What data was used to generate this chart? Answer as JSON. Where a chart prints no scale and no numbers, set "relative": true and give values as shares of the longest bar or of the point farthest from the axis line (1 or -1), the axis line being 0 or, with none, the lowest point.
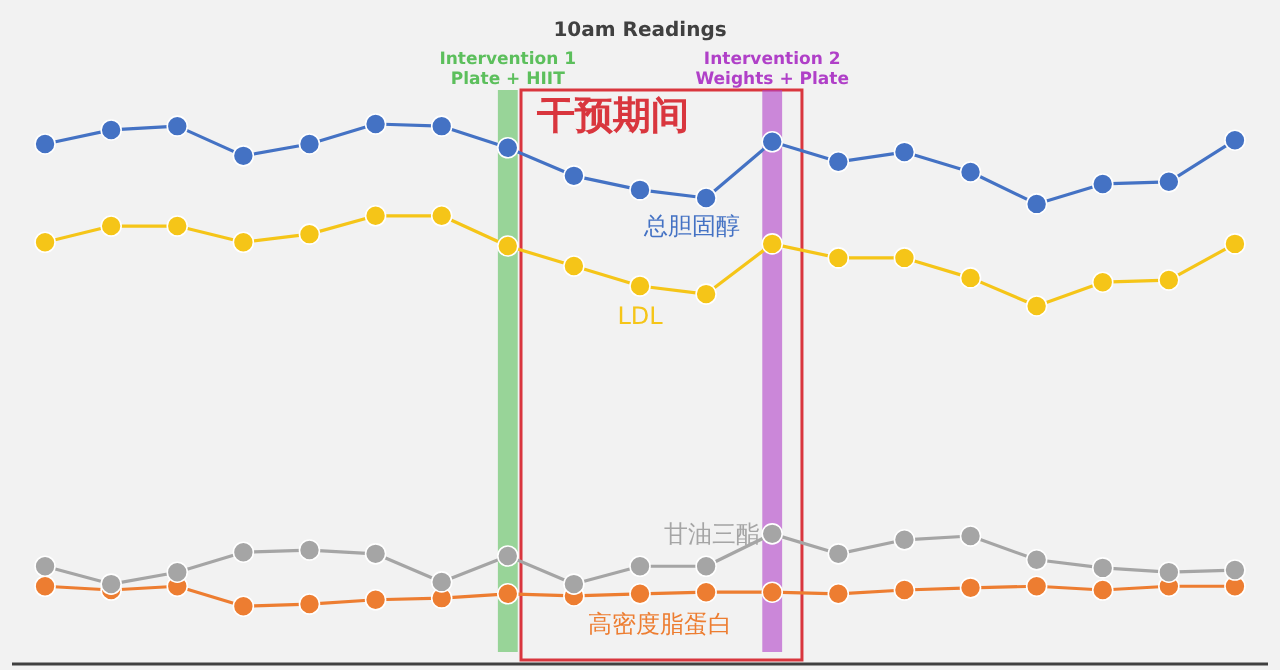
{
  "chart_data": {
    "type": "line",
    "title": "10am Readings",
    "relative": true,
    "tick_labels": false,
    "marker": "circle",
    "categories": [
      null,
      null,
      null,
      null,
      null,
      null,
      null,
      null,
      null,
      null,
      null,
      null,
      null,
      null,
      null,
      null,
      null,
      null,
      null
    ],
    "series": [
      {
        "name": "总胆固醇",
        "color": "#4472c4",
        "values": [
          0.963,
          0.989,
          0.996,
          0.941,
          0.963,
          1,
          0.996,
          0.956,
          0.904,
          0.878,
          0.863,
          0.967,
          0.93,
          0.948,
          0.911,
          0.852,
          0.889,
          0.893,
          0.97
        ]
      },
      {
        "name": "LDL",
        "color": "#f5c518",
        "values": [
          0.781,
          0.811,
          0.811,
          0.781,
          0.796,
          0.83,
          0.83,
          0.774,
          0.737,
          0.7,
          0.685,
          0.778,
          0.752,
          0.752,
          0.715,
          0.663,
          0.707,
          0.711,
          0.778
        ]
      },
      {
        "name": "甘油三酯",
        "color": "#a5a5a5",
        "values": [
          0.181,
          0.148,
          0.17,
          0.207,
          0.211,
          0.204,
          0.152,
          0.2,
          0.148,
          0.181,
          0.181,
          0.241,
          0.204,
          0.23,
          0.237,
          0.193,
          0.178,
          0.17,
          0.174
        ]
      },
      {
        "name": "高密度脂蛋白",
        "color": "#ed7d31",
        "values": [
          0.144,
          0.137,
          0.144,
          0.107,
          0.111,
          0.119,
          0.122,
          0.13,
          0.126,
          0.13,
          0.133,
          0.133,
          0.13,
          0.137,
          0.141,
          0.144,
          0.137,
          0.144,
          0.144
        ]
      }
    ],
    "annotations": [
      "干预期间",
      "Intervention 1\nPlate + HIIT",
      "Intervention 2\nWeights + Plate"
    ]
  }
}
